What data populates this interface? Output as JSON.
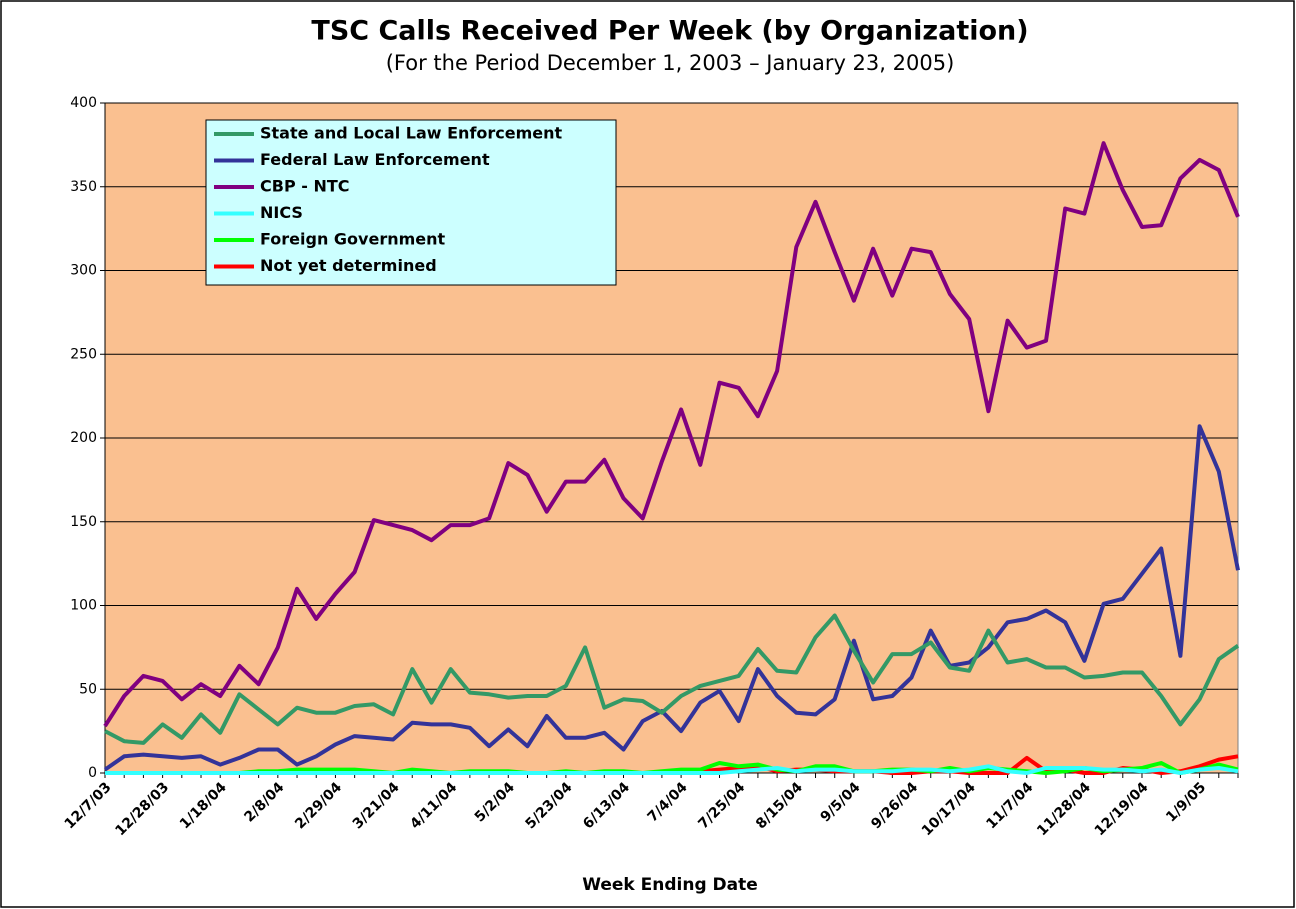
{
  "chart_data": {
    "type": "line",
    "title": "TSC Calls Received Per Week (by Organization)",
    "subtitle": "(For the Period December 1, 2003 – January 23, 2005)",
    "x_label": "Week Ending Date",
    "categories": [
      "12/7/03",
      null,
      null,
      "12/28/03",
      null,
      null,
      "1/18/04",
      null,
      null,
      "2/8/04",
      null,
      null,
      "2/29/04",
      null,
      null,
      "3/21/04",
      null,
      null,
      "4/11/04",
      null,
      null,
      "5/2/04",
      null,
      null,
      "5/23/04",
      null,
      null,
      "6/13/04",
      null,
      null,
      "7/4/04",
      null,
      null,
      "7/25/04",
      null,
      null,
      "8/15/04",
      null,
      null,
      "9/5/04",
      null,
      null,
      "9/26/04",
      null,
      null,
      "10/17/04",
      null,
      null,
      "11/7/04",
      null,
      null,
      "11/28/04",
      null,
      null,
      "12/19/04",
      null,
      null,
      "1/9/05",
      null,
      null
    ],
    "ylim": [
      0,
      400
    ],
    "yticks": [
      0,
      50,
      100,
      150,
      200,
      250,
      300,
      350,
      400
    ],
    "grid": true,
    "background": "#FAC090",
    "legend_background": "#CCFFFF",
    "series": [
      {
        "name": "State and Local Law Enforcement",
        "color": "#339966",
        "values": [
          25,
          19,
          18,
          29,
          21,
          35,
          24,
          47,
          38,
          29,
          39,
          36,
          36,
          40,
          41,
          35,
          62,
          42,
          62,
          48,
          47,
          45,
          46,
          46,
          52,
          75,
          39,
          44,
          43,
          36,
          46,
          52,
          55,
          58,
          74,
          61,
          60,
          81,
          94,
          73,
          54,
          71,
          71,
          78,
          63,
          61,
          85,
          66,
          68,
          63,
          63,
          57,
          58,
          60,
          60,
          46,
          29,
          44,
          68,
          76
        ]
      },
      {
        "name": "Federal Law Enforcement",
        "color": "#333399",
        "values": [
          2,
          10,
          11,
          10,
          9,
          10,
          5,
          9,
          14,
          14,
          5,
          10,
          17,
          22,
          21,
          20,
          30,
          29,
          29,
          27,
          16,
          26,
          16,
          34,
          21,
          21,
          24,
          14,
          31,
          37,
          25,
          42,
          49,
          31,
          62,
          46,
          36,
          35,
          44,
          79,
          44,
          46,
          57,
          85,
          64,
          66,
          75,
          90,
          92,
          97,
          90,
          67,
          101,
          104,
          119,
          134,
          70,
          207,
          180,
          121
        ]
      },
      {
        "name": "CBP - NTC",
        "color": "#800080",
        "values": [
          28,
          46,
          58,
          55,
          44,
          53,
          46,
          64,
          53,
          75,
          110,
          92,
          107,
          120,
          151,
          148,
          145,
          139,
          148,
          148,
          152,
          185,
          178,
          156,
          174,
          174,
          187,
          164,
          152,
          186,
          217,
          184,
          233,
          230,
          213,
          240,
          314,
          341,
          311,
          282,
          313,
          285,
          313,
          311,
          286,
          271,
          216,
          270,
          254,
          258,
          337,
          334,
          376,
          348,
          326,
          327,
          355,
          366,
          360,
          332
        ]
      },
      {
        "name": "NICS",
        "color": "#33FFFF",
        "values": [
          0,
          0,
          0,
          0,
          0,
          0,
          0,
          0,
          0,
          0,
          0,
          0,
          0,
          0,
          0,
          0,
          0,
          0,
          0,
          0,
          0,
          0,
          0,
          0,
          0,
          0,
          0,
          0,
          0,
          0,
          0,
          0,
          0,
          1,
          2,
          3,
          1,
          2,
          2,
          1,
          1,
          1,
          2,
          2,
          1,
          2,
          4,
          1,
          0,
          3,
          3,
          3,
          2,
          2,
          1,
          2,
          0,
          2,
          3,
          1
        ]
      },
      {
        "name": "Foreign Government",
        "color": "#00FF00",
        "values": [
          0,
          0,
          0,
          0,
          0,
          0,
          0,
          0,
          1,
          1,
          2,
          2,
          2,
          2,
          1,
          0,
          2,
          1,
          0,
          1,
          1,
          1,
          0,
          0,
          1,
          0,
          1,
          1,
          0,
          1,
          2,
          2,
          6,
          4,
          5,
          2,
          1,
          4,
          4,
          1,
          1,
          2,
          2,
          1,
          3,
          1,
          3,
          2,
          1,
          0,
          1,
          3,
          1,
          2,
          3,
          6,
          0,
          2,
          5,
          2
        ]
      },
      {
        "name": "Not yet determined",
        "color": "#FF0000",
        "values": [
          0,
          0,
          0,
          0,
          0,
          0,
          0,
          0,
          0,
          0,
          0,
          0,
          0,
          0,
          0,
          0,
          0,
          0,
          0,
          0,
          0,
          0,
          0,
          0,
          0,
          0,
          0,
          0,
          0,
          0,
          0,
          1,
          2,
          3,
          4,
          1,
          2,
          2,
          1,
          1,
          1,
          0,
          0,
          1,
          1,
          0,
          0,
          0,
          9,
          1,
          2,
          0,
          0,
          3,
          2,
          0,
          1,
          4,
          8,
          10
        ]
      }
    ]
  }
}
